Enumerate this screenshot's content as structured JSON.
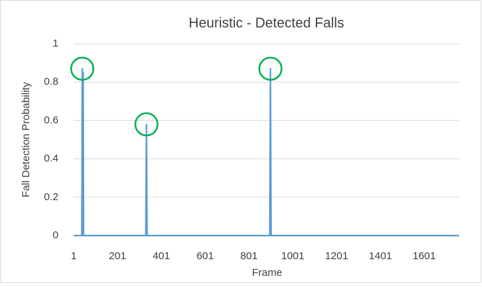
{
  "chart_data": {
    "type": "line",
    "title": "Heuristic - Detected Falls",
    "x_label": "Frame",
    "y_label": "Fall Detection Probability",
    "x": [
      1,
      38,
      40,
      42,
      44,
      46,
      330,
      333,
      336,
      896,
      899,
      902,
      1760
    ],
    "series": [
      {
        "name": "Fall Detection Probability",
        "color": "#5b9bd5",
        "values": [
          0,
          0,
          0.87,
          0,
          0.85,
          0,
          0,
          0.58,
          0,
          0,
          0.87,
          0,
          0
        ]
      }
    ],
    "xlim": [
      1,
      1760
    ],
    "xticks": [
      1,
      201,
      401,
      601,
      801,
      1001,
      1201,
      1401,
      1601
    ],
    "ylim": [
      0,
      1
    ],
    "yticks": [
      0,
      0.2,
      0.4,
      0.6,
      0.8,
      1
    ],
    "grid": true,
    "highlight_color": "#00b050"
  }
}
